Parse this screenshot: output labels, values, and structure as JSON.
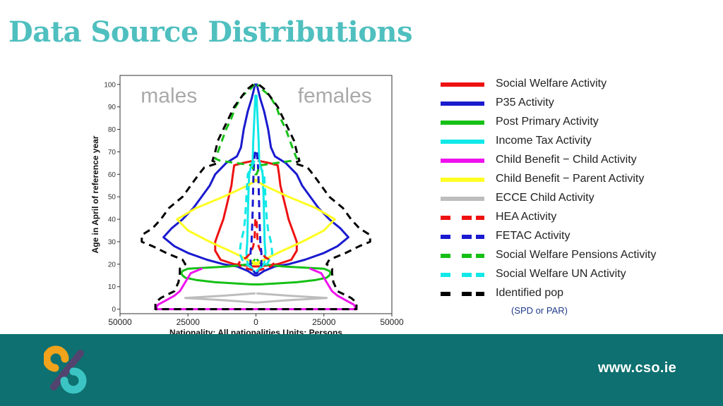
{
  "page": {
    "title": "Data Source Distributions"
  },
  "footer": {
    "url": "www.cso.ie"
  },
  "colors": {
    "title": "#4fbfbf",
    "footer_bg": "#0e7070",
    "logo_orange": "#f2a31b",
    "logo_teal": "#3cc4c4",
    "logo_purple": "#52446f"
  },
  "chart_data": {
    "type": "line",
    "subtype": "population pyramid",
    "annotations": [
      "males",
      "females"
    ],
    "ylabel": "Age in April of reference year",
    "xlabel": "Nationality: All nationalities   Units: Persons",
    "x_ticks": [
      "50000",
      "25000",
      "0",
      "25000",
      "50000"
    ],
    "y_ticks": [
      "0",
      "10",
      "20",
      "30",
      "40",
      "50",
      "60",
      "70",
      "80",
      "90",
      "100"
    ],
    "xlim": [
      -50000,
      50000
    ],
    "ylim": [
      -2,
      104
    ],
    "grid": false,
    "legend_position": "right",
    "series": [
      {
        "name": "Social Welfare Activity",
        "color": "#ee1111",
        "dash": "solid",
        "points": [
          [
            19,
            1000
          ],
          [
            20,
            8000
          ],
          [
            22,
            13000
          ],
          [
            26,
            15000
          ],
          [
            30,
            15000
          ],
          [
            35,
            13500
          ],
          [
            40,
            12000
          ],
          [
            45,
            11000
          ],
          [
            50,
            10000
          ],
          [
            55,
            9000
          ],
          [
            60,
            8500
          ],
          [
            64,
            8000
          ],
          [
            65,
            5000
          ],
          [
            66,
            1000
          ]
        ]
      },
      {
        "name": "P35 Activity",
        "color": "#1a1acf",
        "dash": "solid",
        "points": [
          [
            15,
            500
          ],
          [
            17,
            3000
          ],
          [
            19,
            7000
          ],
          [
            20,
            12000
          ],
          [
            22,
            18000
          ],
          [
            25,
            25000
          ],
          [
            28,
            30000
          ],
          [
            32,
            34000
          ],
          [
            36,
            31000
          ],
          [
            40,
            27000
          ],
          [
            45,
            23000
          ],
          [
            50,
            20000
          ],
          [
            55,
            17000
          ],
          [
            60,
            15000
          ],
          [
            65,
            11000
          ],
          [
            68,
            7000
          ],
          [
            72,
            5500
          ],
          [
            80,
            4500
          ],
          [
            88,
            3000
          ],
          [
            94,
            1500
          ],
          [
            100,
            300
          ]
        ]
      },
      {
        "name": "Post Primary Activity",
        "color": "#16c016",
        "dash": "solid",
        "points": [
          [
            11,
            1500
          ],
          [
            12,
            15000
          ],
          [
            13,
            22000
          ],
          [
            14,
            26000
          ],
          [
            15,
            27000
          ],
          [
            16,
            27500
          ],
          [
            17,
            27000
          ],
          [
            18,
            25000
          ],
          [
            19,
            10000
          ],
          [
            20,
            2000
          ],
          [
            22,
            500
          ]
        ]
      },
      {
        "name": "Income Tax Activity",
        "color": "#11e8e8",
        "dash": "solid",
        "points": [
          [
            16,
            200
          ],
          [
            18,
            1500
          ],
          [
            20,
            3000
          ],
          [
            25,
            3500
          ],
          [
            30,
            3200
          ],
          [
            40,
            3000
          ],
          [
            50,
            2800
          ],
          [
            60,
            2500
          ],
          [
            65,
            1500
          ],
          [
            66,
            1200
          ],
          [
            75,
            1000
          ],
          [
            85,
            600
          ],
          [
            95,
            200
          ]
        ]
      },
      {
        "name": "Child Benefit − Child Activity",
        "color": "#ee11ee",
        "dash": "solid",
        "points": [
          [
            0,
            37000
          ],
          [
            2,
            36000
          ],
          [
            4,
            33000
          ],
          [
            6,
            30000
          ],
          [
            8,
            28000
          ],
          [
            10,
            27000
          ],
          [
            12,
            26000
          ],
          [
            14,
            25000
          ],
          [
            16,
            24000
          ],
          [
            18,
            20000
          ]
        ]
      },
      {
        "name": "Child Benefit − Parent Activity",
        "color": "#ffff22",
        "dash": "solid",
        "points": [
          [
            20,
            -1000
          ],
          [
            22,
            3000
          ],
          [
            25,
            8000
          ],
          [
            30,
            17000
          ],
          [
            35,
            25000
          ],
          [
            40,
            29000
          ],
          [
            45,
            22000
          ],
          [
            50,
            12000
          ],
          [
            55,
            3000
          ],
          [
            58,
            -1000
          ]
        ]
      },
      {
        "name": "ECCE Child Activity",
        "color": "#bdbdbd",
        "dash": "solid",
        "points": [
          [
            3,
            500
          ],
          [
            4,
            12000
          ],
          [
            5,
            26000
          ],
          [
            6,
            12000
          ],
          [
            7,
            500
          ]
        ]
      },
      {
        "name": "HEA Activity",
        "color": "#ee1111",
        "dash": "dashed",
        "points": [
          [
            17,
            200
          ],
          [
            18,
            3000
          ],
          [
            19,
            5500
          ],
          [
            20,
            6500
          ],
          [
            21,
            6000
          ],
          [
            22,
            5000
          ],
          [
            23,
            3500
          ],
          [
            25,
            2000
          ],
          [
            28,
            1000
          ],
          [
            32,
            500
          ],
          [
            40,
            200
          ]
        ]
      },
      {
        "name": "FETAC Activity",
        "color": "#1a1acf",
        "dash": "dashed",
        "points": [
          [
            16,
            300
          ],
          [
            18,
            1500
          ],
          [
            20,
            2000
          ],
          [
            25,
            2000
          ],
          [
            30,
            1600
          ],
          [
            40,
            1300
          ],
          [
            50,
            1100
          ],
          [
            60,
            900
          ],
          [
            65,
            700
          ],
          [
            70,
            300
          ]
        ]
      },
      {
        "name": "Social Welfare Pensions Activity",
        "color": "#16c016",
        "dash": "dashed",
        "points": [
          [
            60,
            200
          ],
          [
            64,
            1500
          ],
          [
            66,
            13000
          ],
          [
            67,
            15000
          ],
          [
            70,
            14000
          ],
          [
            75,
            12500
          ],
          [
            80,
            11000
          ],
          [
            85,
            9000
          ],
          [
            90,
            7500
          ],
          [
            95,
            5000
          ],
          [
            98,
            2000
          ],
          [
            100,
            500
          ]
        ]
      },
      {
        "name": "Social Welfare UN Activity",
        "color": "#11e8e8",
        "dash": "dashed",
        "points": [
          [
            17,
            300
          ],
          [
            19,
            2000
          ],
          [
            20,
            4000
          ],
          [
            22,
            5000
          ],
          [
            25,
            6000
          ],
          [
            30,
            5500
          ],
          [
            35,
            4500
          ],
          [
            40,
            4000
          ],
          [
            50,
            3500
          ],
          [
            60,
            3000
          ],
          [
            66,
            500
          ]
        ]
      },
      {
        "name": "Identified pop",
        "color": "#000000",
        "dash": "dashed",
        "points": [
          [
            0,
            37000
          ],
          [
            3,
            37000
          ],
          [
            5,
            35000
          ],
          [
            8,
            30000
          ],
          [
            12,
            28500
          ],
          [
            16,
            28000
          ],
          [
            18,
            28000
          ],
          [
            20,
            26000
          ],
          [
            22,
            27000
          ],
          [
            25,
            33000
          ],
          [
            28,
            38000
          ],
          [
            30,
            42000
          ],
          [
            33,
            42000
          ],
          [
            36,
            38000
          ],
          [
            40,
            35000
          ],
          [
            45,
            32000
          ],
          [
            50,
            27000
          ],
          [
            55,
            24000
          ],
          [
            60,
            21000
          ],
          [
            63,
            19000
          ],
          [
            65,
            14000
          ],
          [
            66,
            16000
          ],
          [
            70,
            15000
          ],
          [
            75,
            14000
          ],
          [
            80,
            12000
          ],
          [
            85,
            10000
          ],
          [
            90,
            8000
          ],
          [
            95,
            5000
          ],
          [
            98,
            3000
          ],
          [
            100,
            1000
          ]
        ]
      }
    ]
  }
}
